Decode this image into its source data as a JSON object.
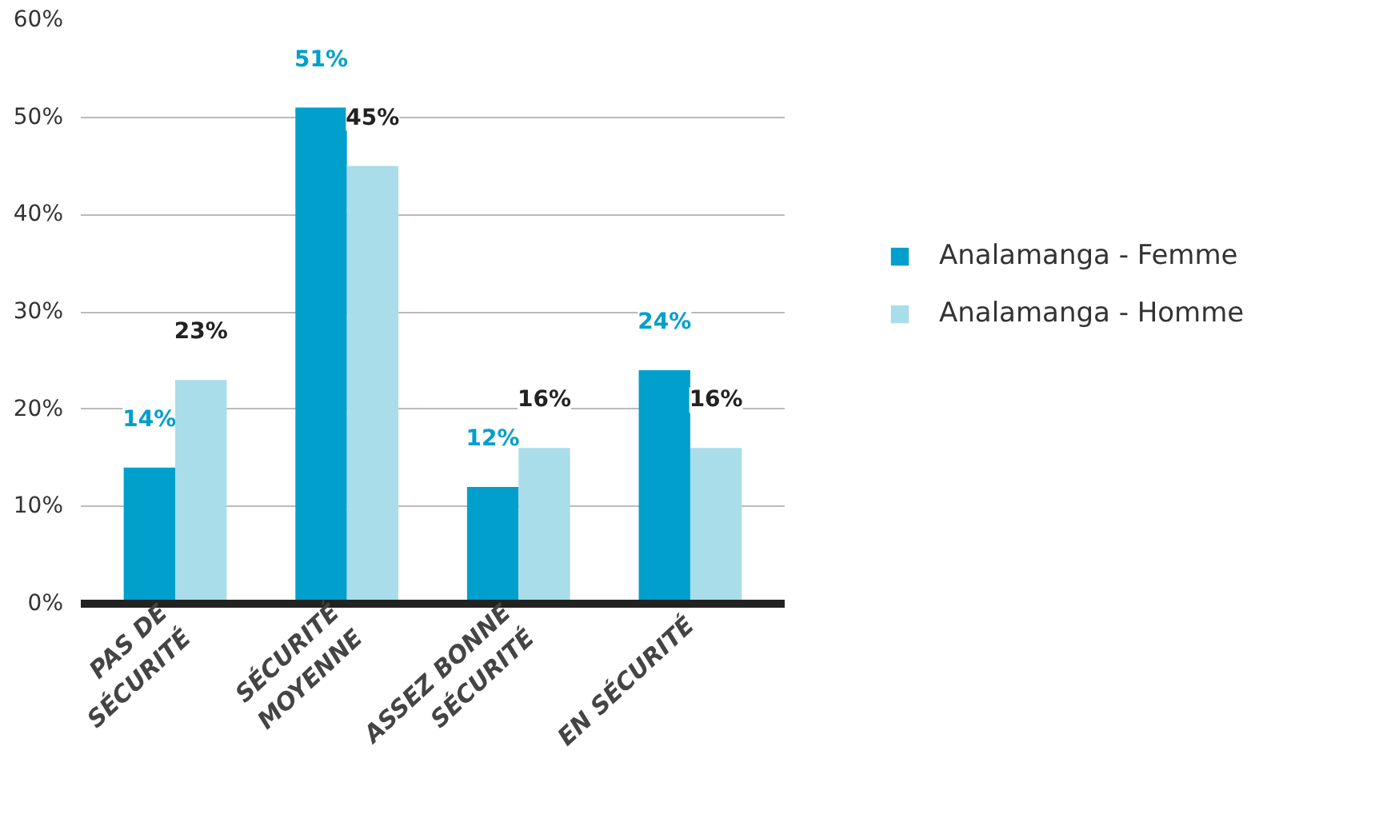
{
  "chart_data": {
    "type": "bar",
    "categories": [
      "PAS DE\nSÉCURITÉ",
      "SÉCURITÉ\nMOYENNE",
      "ASSEZ BONNE\nSÉCURITÉ",
      "EN SÉCURITÉ"
    ],
    "series": [
      {
        "name": "Analamanga - Femme",
        "color": "#009fcc",
        "values": [
          14,
          51,
          12,
          24
        ]
      },
      {
        "name": "Analamanga - Homme",
        "color": "#a8dde9",
        "values": [
          23,
          45,
          16,
          16
        ]
      }
    ],
    "ylim": [
      0,
      60
    ],
    "yticks": [
      {
        "value": 0,
        "label": "0%"
      },
      {
        "value": 10,
        "label": "10%"
      },
      {
        "value": 20,
        "label": "20%"
      },
      {
        "value": 30,
        "label": "30%"
      },
      {
        "value": 40,
        "label": "40%"
      },
      {
        "value": 50,
        "label": "50%"
      },
      {
        "value": 60,
        "label": "60%"
      }
    ],
    "value_labels": [
      [
        "14%",
        "51%",
        "12%",
        "24%"
      ],
      [
        "23%",
        "45%",
        "16%",
        "16%"
      ]
    ],
    "grid": "y",
    "legend": "right"
  }
}
